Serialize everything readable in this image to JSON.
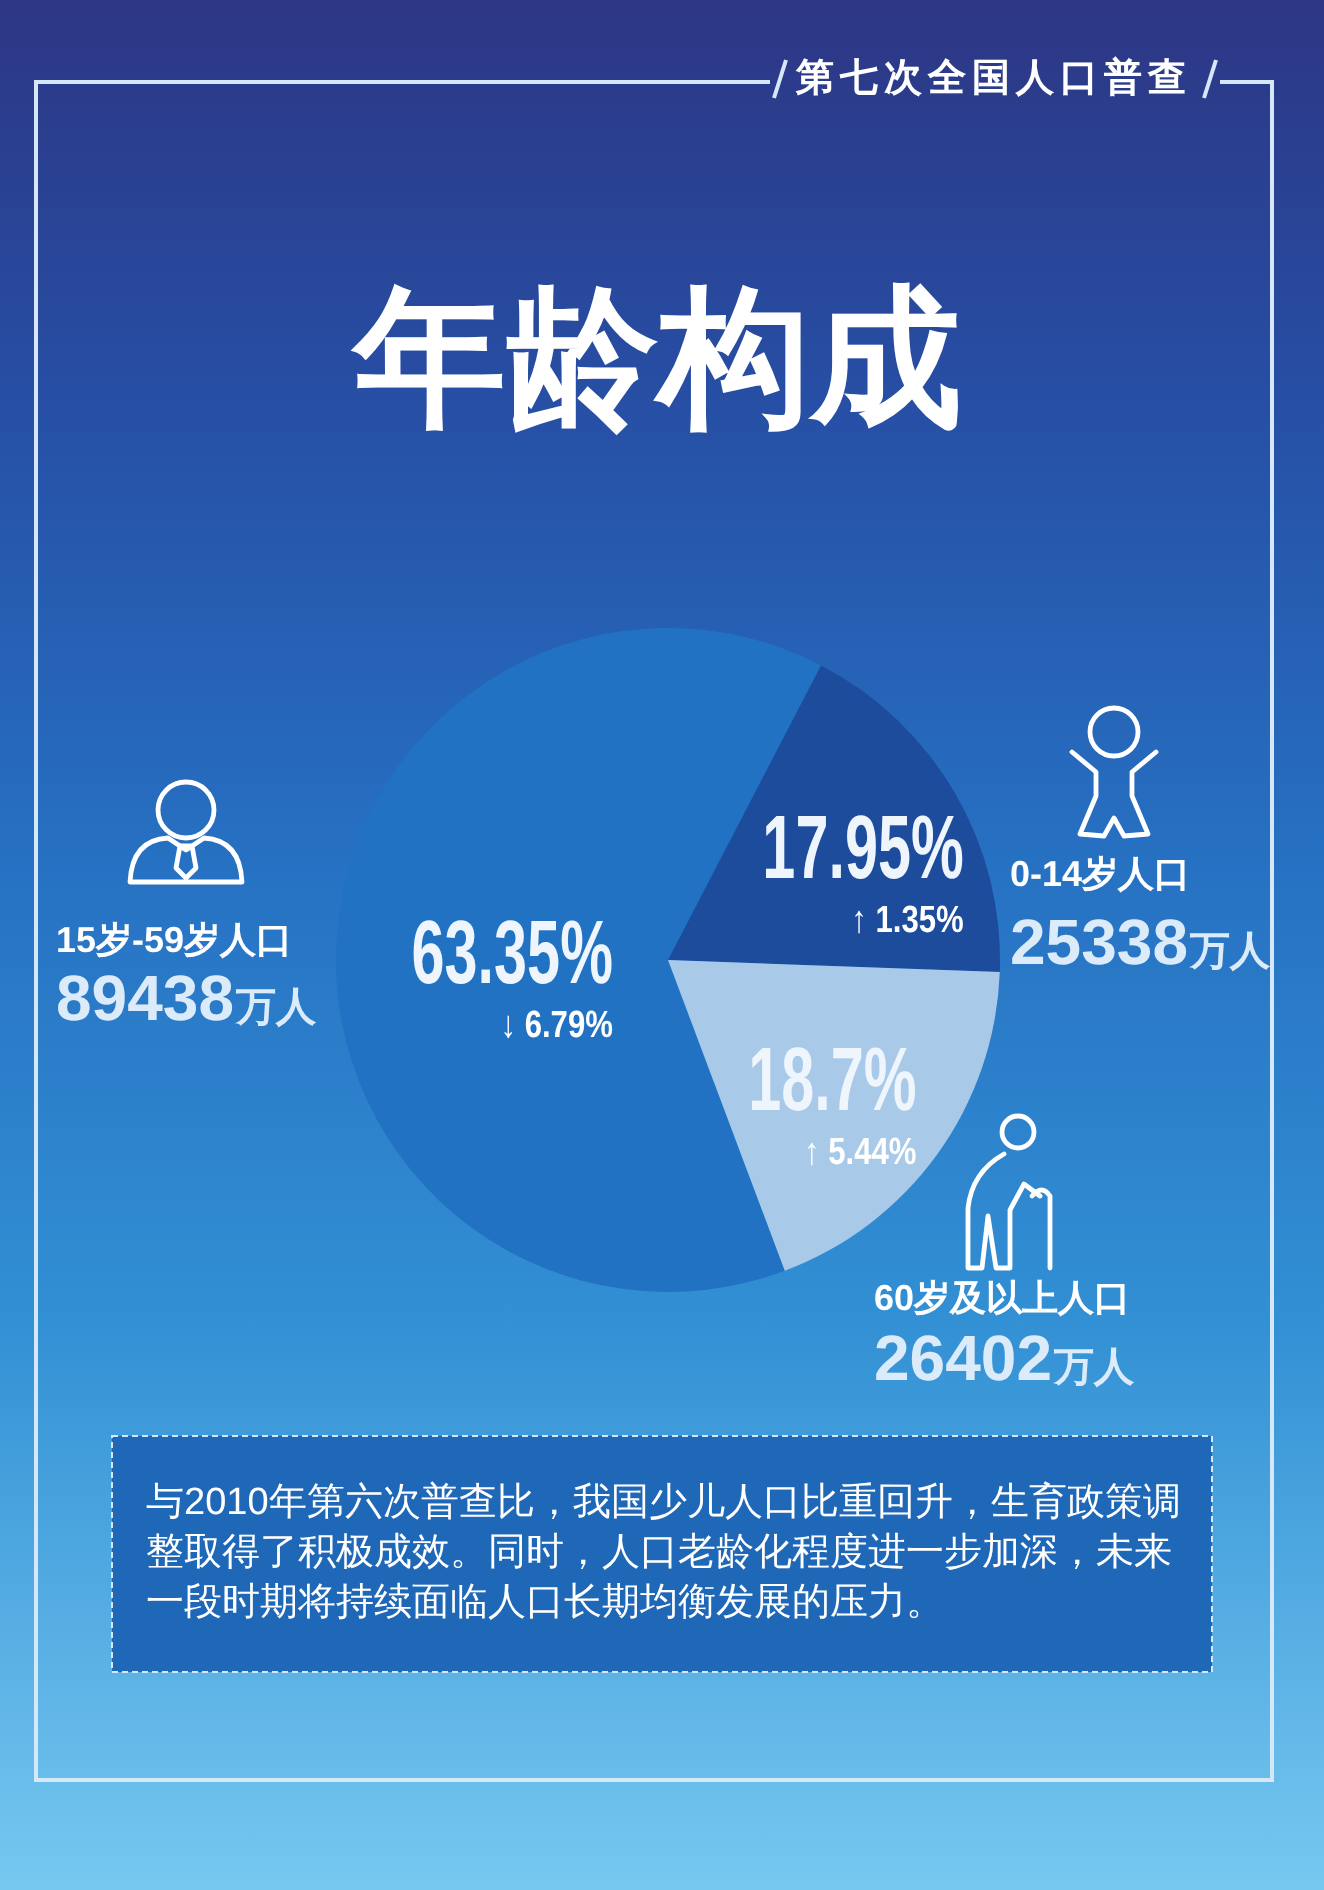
{
  "chart_data": {
    "type": "pie",
    "title": "年龄构成",
    "subtitle": "第七次全国人口普查",
    "categories": [
      "15岁-59岁人口",
      "0-14岁人口",
      "60岁及以上人口"
    ],
    "values": [
      63.35,
      17.95,
      18.7
    ],
    "colors": [
      "#2172c3",
      "#1c4c9b",
      "#a9c9e9"
    ],
    "value_labels": [
      "63.35%",
      "17.95%",
      "18.7%"
    ],
    "annotations": [
      "↓ 6.79%",
      "↑ 1.35%",
      "↑ 5.44%",
      "89438万人",
      "25338万人",
      "26402万人",
      "与2010年第六次普查比，我国少儿人口比重回升，生育政策调整取得了积极成效。同时，人口老龄化程度进一步加深，未来一段时期将持续面临人口长期均衡发展的压力。"
    ]
  }
}
